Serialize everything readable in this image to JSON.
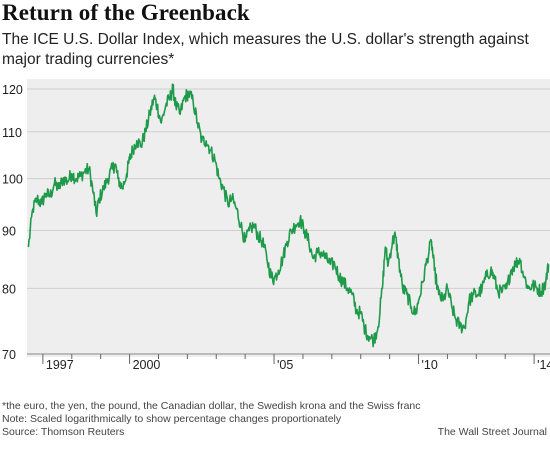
{
  "header": {
    "title": "Return of the Greenback",
    "subtitle": "The ICE U.S. Dollar Index, which measures the U.S. dollar's strength against major trading currencies*"
  },
  "footer": {
    "footnote": "*the euro, the yen, the pound, the Canadian dollar, the Swedish krona and the Swiss franc",
    "note": "Note: Scaled logarithmically to show percentage changes proportionately",
    "source": "Source: Thomson Reuters",
    "credit": "The Wall Street Journal"
  },
  "colors": {
    "line": "#1f9a4b",
    "grid": "#cfcfcf",
    "plot_bg": "#eeeeee",
    "text": "#222222"
  },
  "chart_data": {
    "type": "line",
    "title": "Return of the Greenback",
    "xlabel": "",
    "ylabel": "",
    "y_scale": "log",
    "ylim": [
      70,
      120
    ],
    "xlim": [
      1996.45,
      2014.55
    ],
    "grid": true,
    "y_ticks": [
      120,
      110,
      100,
      90,
      80,
      70
    ],
    "x_ticks": [
      {
        "value": 1997,
        "label": "1997"
      },
      {
        "value": 1998,
        "label": ""
      },
      {
        "value": 1999,
        "label": ""
      },
      {
        "value": 2000,
        "label": "2000"
      },
      {
        "value": 2001,
        "label": ""
      },
      {
        "value": 2002,
        "label": ""
      },
      {
        "value": 2003,
        "label": ""
      },
      {
        "value": 2004,
        "label": ""
      },
      {
        "value": 2005,
        "label": "'05"
      },
      {
        "value": 2006,
        "label": ""
      },
      {
        "value": 2007,
        "label": ""
      },
      {
        "value": 2008,
        "label": ""
      },
      {
        "value": 2009,
        "label": ""
      },
      {
        "value": 2010,
        "label": "'10"
      },
      {
        "value": 2011,
        "label": ""
      },
      {
        "value": 2012,
        "label": ""
      },
      {
        "value": 2013,
        "label": ""
      },
      {
        "value": 2014,
        "label": "'14"
      }
    ],
    "series": [
      {
        "name": "ICE U.S. Dollar Index",
        "points": [
          [
            1996.5,
            87
          ],
          [
            1996.65,
            94
          ],
          [
            1996.8,
            96
          ],
          [
            1996.95,
            95
          ],
          [
            1997.1,
            97
          ],
          [
            1997.25,
            96.5
          ],
          [
            1997.4,
            99
          ],
          [
            1997.55,
            98
          ],
          [
            1997.7,
            100
          ],
          [
            1997.85,
            99.5
          ],
          [
            1998.0,
            101
          ],
          [
            1998.15,
            100
          ],
          [
            1998.3,
            100.5
          ],
          [
            1998.45,
            101.5
          ],
          [
            1998.6,
            102
          ],
          [
            1998.75,
            97
          ],
          [
            1998.85,
            93
          ],
          [
            1998.95,
            96
          ],
          [
            1999.1,
            98
          ],
          [
            1999.25,
            100
          ],
          [
            1999.4,
            102
          ],
          [
            1999.5,
            103
          ],
          [
            1999.6,
            100
          ],
          [
            1999.75,
            98
          ],
          [
            1999.9,
            101
          ],
          [
            2000.0,
            104
          ],
          [
            2000.1,
            106
          ],
          [
            2000.25,
            108
          ],
          [
            2000.4,
            107
          ],
          [
            2000.55,
            110
          ],
          [
            2000.7,
            114
          ],
          [
            2000.85,
            118
          ],
          [
            2000.95,
            116
          ],
          [
            2001.1,
            112
          ],
          [
            2001.25,
            116
          ],
          [
            2001.4,
            118
          ],
          [
            2001.5,
            120
          ],
          [
            2001.6,
            116
          ],
          [
            2001.75,
            114
          ],
          [
            2001.9,
            118
          ],
          [
            2002.05,
            119
          ],
          [
            2002.2,
            117
          ],
          [
            2002.35,
            112
          ],
          [
            2002.5,
            108
          ],
          [
            2002.65,
            108
          ],
          [
            2002.8,
            106
          ],
          [
            2002.95,
            104
          ],
          [
            2003.1,
            100
          ],
          [
            2003.25,
            98
          ],
          [
            2003.4,
            95
          ],
          [
            2003.55,
            96
          ],
          [
            2003.7,
            94
          ],
          [
            2003.85,
            91
          ],
          [
            2004.0,
            88
          ],
          [
            2004.15,
            90
          ],
          [
            2004.3,
            91
          ],
          [
            2004.45,
            89
          ],
          [
            2004.6,
            88
          ],
          [
            2004.75,
            85
          ],
          [
            2004.9,
            82
          ],
          [
            2005.0,
            81.5
          ],
          [
            2005.15,
            83
          ],
          [
            2005.3,
            85
          ],
          [
            2005.45,
            88
          ],
          [
            2005.6,
            90
          ],
          [
            2005.75,
            91
          ],
          [
            2005.9,
            92
          ],
          [
            2006.05,
            90
          ],
          [
            2006.2,
            88
          ],
          [
            2006.35,
            85
          ],
          [
            2006.5,
            86
          ],
          [
            2006.65,
            86
          ],
          [
            2006.8,
            85
          ],
          [
            2006.95,
            84
          ],
          [
            2007.1,
            84
          ],
          [
            2007.25,
            82
          ],
          [
            2007.4,
            81
          ],
          [
            2007.55,
            80
          ],
          [
            2007.7,
            79
          ],
          [
            2007.85,
            76.5
          ],
          [
            2008.0,
            76
          ],
          [
            2008.15,
            73.5
          ],
          [
            2008.3,
            72.5
          ],
          [
            2008.45,
            72
          ],
          [
            2008.6,
            74
          ],
          [
            2008.75,
            80
          ],
          [
            2008.85,
            87
          ],
          [
            2008.95,
            84
          ],
          [
            2009.1,
            88
          ],
          [
            2009.2,
            89
          ],
          [
            2009.3,
            85
          ],
          [
            2009.45,
            80
          ],
          [
            2009.6,
            79
          ],
          [
            2009.75,
            77
          ],
          [
            2009.9,
            76
          ],
          [
            2010.0,
            78
          ],
          [
            2010.15,
            81
          ],
          [
            2010.3,
            85
          ],
          [
            2010.45,
            88
          ],
          [
            2010.55,
            83
          ],
          [
            2010.7,
            79
          ],
          [
            2010.85,
            78
          ],
          [
            2011.0,
            80
          ],
          [
            2011.15,
            77
          ],
          [
            2011.3,
            75
          ],
          [
            2011.45,
            74
          ],
          [
            2011.6,
            74
          ],
          [
            2011.75,
            78
          ],
          [
            2011.9,
            79
          ],
          [
            2012.05,
            79
          ],
          [
            2012.2,
            80
          ],
          [
            2012.35,
            82
          ],
          [
            2012.5,
            83
          ],
          [
            2012.6,
            82
          ],
          [
            2012.75,
            79.5
          ],
          [
            2012.9,
            79.5
          ],
          [
            2013.05,
            80
          ],
          [
            2013.2,
            83
          ],
          [
            2013.35,
            84
          ],
          [
            2013.5,
            85
          ],
          [
            2013.65,
            82
          ],
          [
            2013.8,
            80
          ],
          [
            2013.95,
            80.5
          ],
          [
            2014.1,
            80
          ],
          [
            2014.25,
            79.5
          ],
          [
            2014.4,
            81
          ],
          [
            2014.5,
            84
          ]
        ]
      }
    ]
  }
}
